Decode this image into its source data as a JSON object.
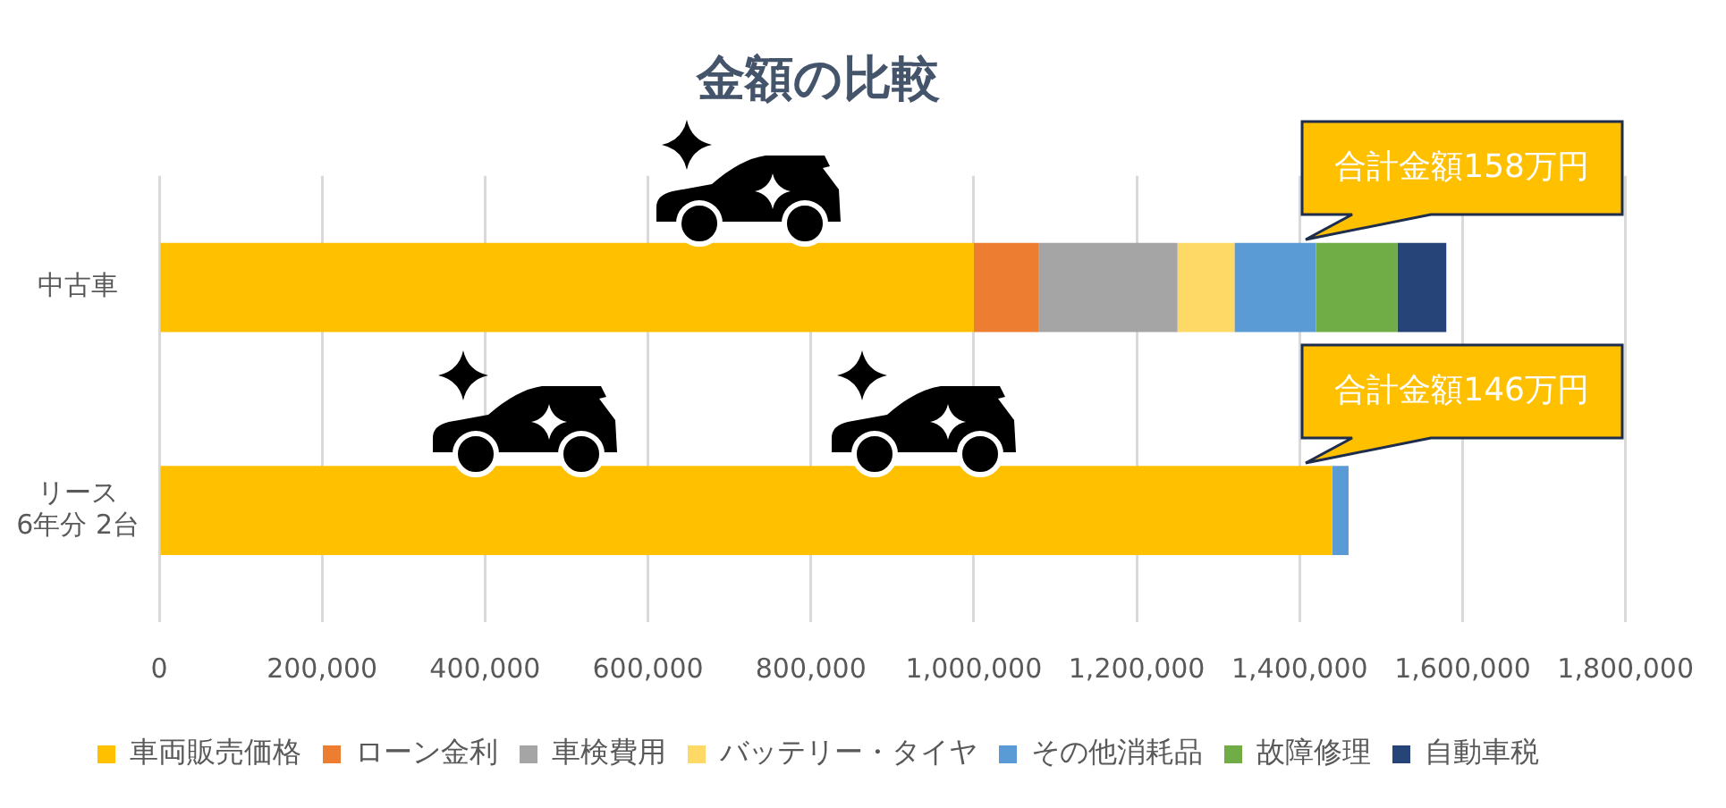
{
  "chart_data": {
    "type": "bar",
    "orientation": "horizontal",
    "stacked": true,
    "title": "金額の比較",
    "categories": [
      "中古車",
      "リース\n6年分 2台"
    ],
    "series": [
      {
        "name": "車両販売価格",
        "color": "#ffc000",
        "values": [
          1000000,
          1440000
        ]
      },
      {
        "name": "ローン金利",
        "color": "#ed7d31",
        "values": [
          80000,
          null
        ]
      },
      {
        "name": "車検費用",
        "color": "#a5a5a5",
        "values": [
          170000,
          null
        ]
      },
      {
        "name": "バッテリー・タイヤ",
        "color": "#ffd966",
        "values": [
          70000,
          null
        ]
      },
      {
        "name": "その他消耗品",
        "color": "#5b9bd5",
        "values": [
          100000,
          20000
        ]
      },
      {
        "name": "故障修理",
        "color": "#70ad47",
        "values": [
          100000,
          null
        ]
      },
      {
        "name": "自動車税",
        "color": "#264478",
        "values": [
          60000,
          null
        ]
      }
    ],
    "xlim": [
      0,
      1800000
    ],
    "xticks": [
      0,
      {
        "value": 200000,
        "label": "200,000"
      },
      {
        "value": 400000,
        "label": "400,000"
      },
      {
        "value": 600000,
        "label": "600,000"
      },
      {
        "value": 800000,
        "label": "800,000"
      },
      {
        "value": 1000000,
        "label": "1,000,000"
      },
      {
        "value": 1200000,
        "label": "1,200,000"
      },
      {
        "value": 1400000,
        "label": "1,400,000"
      },
      {
        "value": 1600000,
        "label": "1,600,000"
      },
      {
        "value": 1800000,
        "label": "1,800,000"
      }
    ],
    "grid": "x",
    "legend": "bottom",
    "totals": [
      "合計金額158万円",
      "合計金額146万円"
    ]
  }
}
